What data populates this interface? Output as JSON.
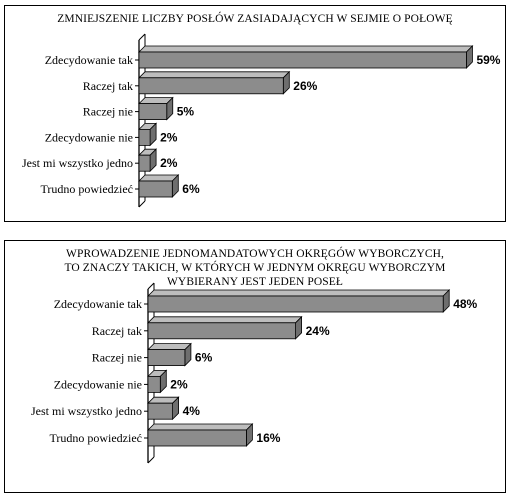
{
  "chart_data": [
    {
      "type": "bar",
      "orientation": "horizontal",
      "style": "3d",
      "title": [
        "ZMNIEJSZENIE LICZBY POSŁÓW ZASIADAJĄCYCH W SEJMIE O POŁOWĘ"
      ],
      "categories": [
        "Zdecydowanie tak",
        "Raczej tak",
        "Raczej nie",
        "Zdecydowanie nie",
        "Jest mi wszystko jedno",
        "Trudno powiedzieć"
      ],
      "values": [
        59,
        26,
        5,
        2,
        2,
        6
      ],
      "value_labels": [
        "59%",
        "26%",
        "5%",
        "2%",
        "2%",
        "6%"
      ],
      "bar_color": "#8c8c8c",
      "bar_top_color": "#bdbdbd",
      "bar_side_color": "#6e6e6e"
    },
    {
      "type": "bar",
      "orientation": "horizontal",
      "style": "3d",
      "title": [
        "WPROWADZENIE JEDNOMANDATOWYCH OKRĘGÓW WYBORCZYCH,",
        "TO ZNACZY TAKICH, W KTÓRYCH W JEDNYM OKRĘGU WYBORCZYM",
        "WYBIERANY JEST JEDEN POSEŁ"
      ],
      "categories": [
        "Zdecydowanie tak",
        "Raczej tak",
        "Raczej nie",
        "Zdecydowanie nie",
        "Jest mi wszystko jedno",
        "Trudno powiedzieć"
      ],
      "values": [
        48,
        24,
        6,
        2,
        4,
        16
      ],
      "value_labels": [
        "48%",
        "24%",
        "6%",
        "2%",
        "4%",
        "16%"
      ],
      "bar_color": "#8c8c8c",
      "bar_top_color": "#bdbdbd",
      "bar_side_color": "#6e6e6e"
    }
  ]
}
